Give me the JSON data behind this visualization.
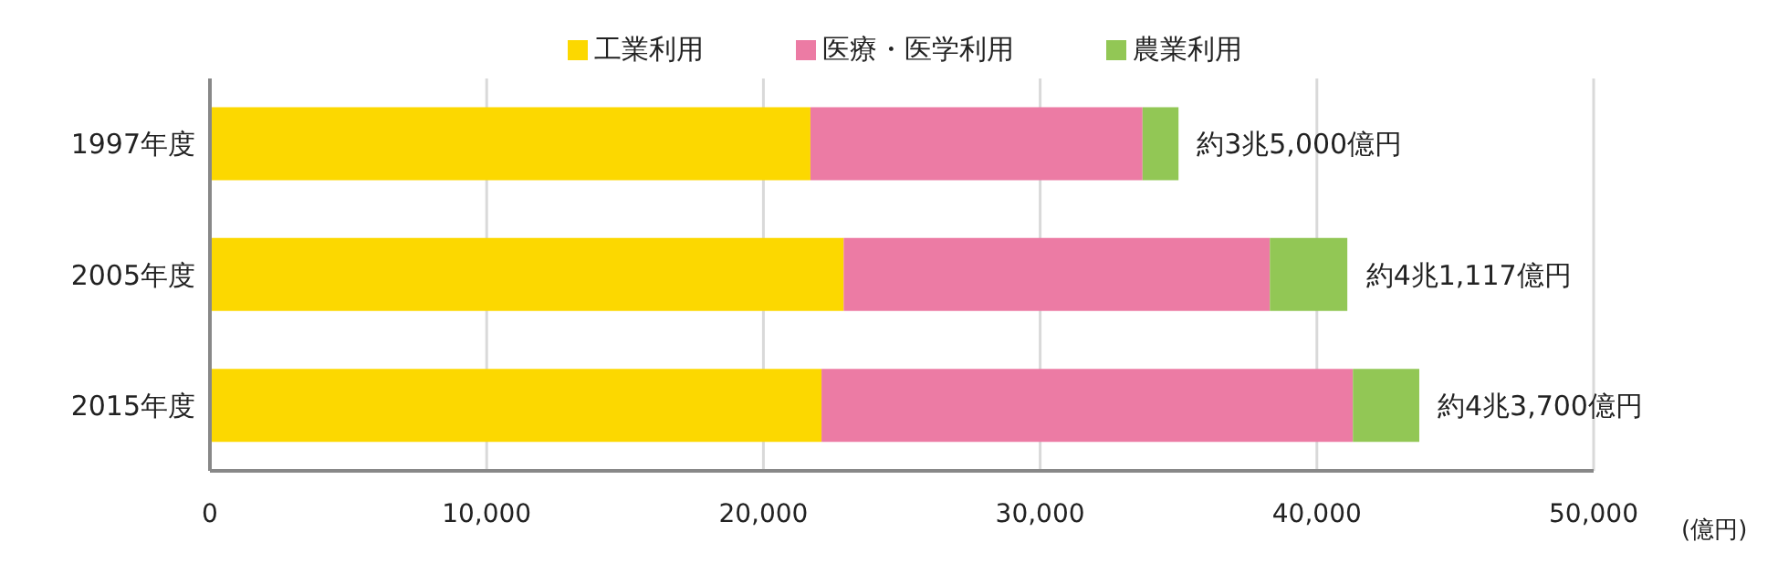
{
  "chart_data": {
    "type": "bar",
    "orientation": "horizontal",
    "stacked": true,
    "categories": [
      "1997年度",
      "2005年度",
      "2015年度"
    ],
    "series": [
      {
        "name": "工業利用",
        "color": "#fcd800",
        "values": [
          21700,
          22900,
          22100
        ]
      },
      {
        "name": "医療・医学利用",
        "color": "#ec7ba4",
        "values": [
          12000,
          15400,
          19200
        ]
      },
      {
        "name": "農業利用",
        "color": "#92c755",
        "values": [
          1300,
          2800,
          2400
        ]
      }
    ],
    "xlim": [
      0,
      50000
    ],
    "xticks": [
      {
        "value": 0,
        "label": "0"
      },
      {
        "value": 10000,
        "label": "10,000"
      },
      {
        "value": 20000,
        "label": "20,000"
      },
      {
        "value": 30000,
        "label": "30,000"
      },
      {
        "value": 40000,
        "label": "40,000"
      },
      {
        "value": 50000,
        "label": "50,000"
      }
    ],
    "xlabel": "(億円)",
    "grid": "x",
    "legend": "top",
    "annotations": [
      {
        "text": "約3兆5,000億円",
        "x": 35000,
        "y": "1997年度"
      },
      {
        "text": "約4兆1,117億円",
        "x": 41117,
        "y": "2005年度"
      },
      {
        "text": "約4兆3,700億円",
        "x": 43700,
        "y": "2015年度"
      }
    ]
  }
}
